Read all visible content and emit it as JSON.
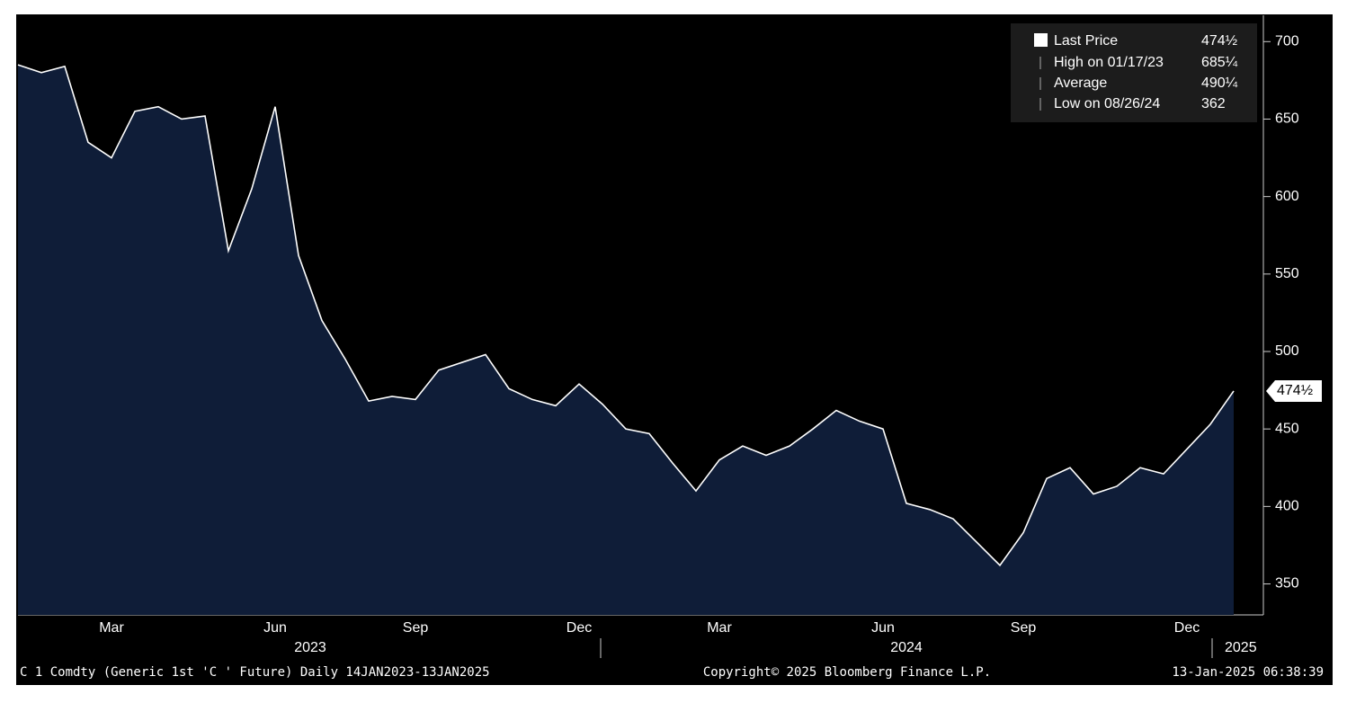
{
  "chart_data": {
    "type": "area",
    "categories": [
      null,
      null,
      null,
      null,
      "Mar",
      null,
      null,
      null,
      null,
      null,
      null,
      "Jun",
      null,
      null,
      null,
      null,
      null,
      "Sep",
      null,
      null,
      null,
      null,
      null,
      null,
      "Dec",
      null,
      null,
      null,
      null,
      null,
      "Mar",
      null,
      null,
      null,
      null,
      null,
      null,
      "Jun",
      null,
      null,
      null,
      null,
      null,
      "Sep",
      null,
      null,
      null,
      null,
      null,
      null,
      "Dec",
      null,
      null
    ],
    "year_ticks": [
      {
        "value": 12.5,
        "label": "2023"
      },
      {
        "value": 38,
        "label": "2024"
      },
      {
        "value": 52.3,
        "label": "2025"
      }
    ],
    "series": [
      {
        "name": "Last Price",
        "color": "#ffffff",
        "fill": "#0f1d38",
        "value_label": "474½",
        "values": [
          685,
          680,
          684,
          635,
          625,
          655,
          658,
          650,
          652,
          565,
          605,
          658,
          562,
          520,
          495,
          468,
          471,
          469,
          488,
          493,
          498,
          476,
          469,
          465,
          479,
          466,
          450,
          447,
          428,
          410,
          430,
          439,
          433,
          439,
          450,
          462,
          455,
          450,
          402,
          398,
          392,
          377,
          362,
          383,
          418,
          425,
          408,
          413,
          425,
          421,
          437,
          453,
          474.5
        ]
      }
    ],
    "legend_stats": [
      {
        "label": "High on 01/17/23",
        "value": 685.25,
        "value_label": "685¼"
      },
      {
        "label": "Average",
        "value": 490.25,
        "value_label": "490¼"
      },
      {
        "label": "Low on 08/26/24",
        "value": 362
      }
    ],
    "ylim": [
      330,
      717
    ],
    "yticks": [
      350,
      400,
      450,
      500,
      550,
      600,
      650,
      700
    ]
  },
  "footer": {
    "left": "C 1 Comdty (Generic 1st 'C ' Future)  Daily 14JAN2023-13JAN2025",
    "center": "Copyright© 2025 Bloomberg Finance L.P.",
    "right": "13-Jan-2025 06:38:39"
  }
}
